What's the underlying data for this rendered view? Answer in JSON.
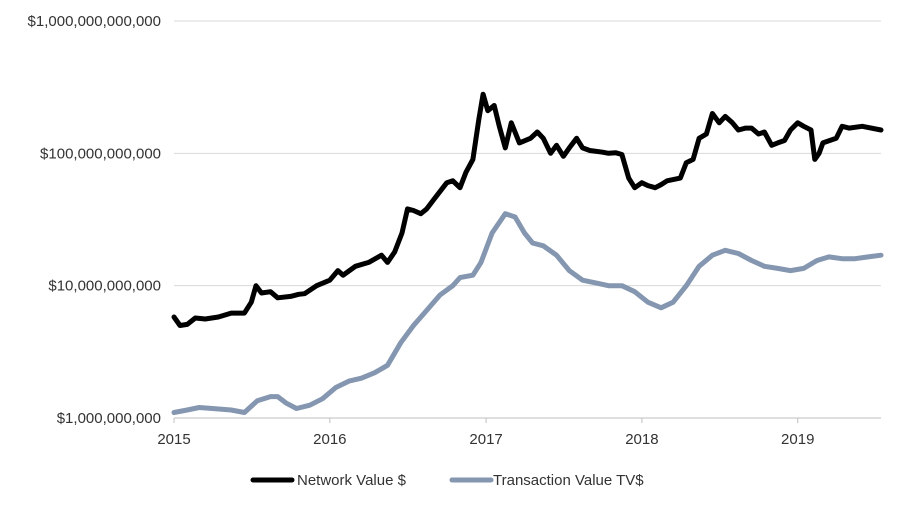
{
  "chart_data": {
    "type": "line",
    "title": "",
    "xlabel": "",
    "ylabel": "",
    "y_scale": "log",
    "ylim": [
      1000000000,
      1000000000000
    ],
    "xlim": [
      "2015-01-01",
      "2019-07-15"
    ],
    "grid": {
      "horizontal": true,
      "vertical": false
    },
    "legend": "bottom-center",
    "x_ticks": [
      "2015",
      "2016",
      "2017",
      "2018",
      "2019"
    ],
    "y_ticks": [
      {
        "value": 1000000000,
        "label": "$1,000,000,000"
      },
      {
        "value": 10000000000,
        "label": "$10,000,000,000"
      },
      {
        "value": 100000000000,
        "label": "$100,000,000,000"
      },
      {
        "value": 1000000000000,
        "label": "$1,000,000,000,000"
      }
    ],
    "series": [
      {
        "name": "Network Value $",
        "color": "#000000",
        "points": [
          [
            "2015-01-01",
            5800000000
          ],
          [
            "2015-01-15",
            5000000000
          ],
          [
            "2015-02-01",
            5100000000
          ],
          [
            "2015-02-20",
            5700000000
          ],
          [
            "2015-03-15",
            5600000000
          ],
          [
            "2015-04-15",
            5800000000
          ],
          [
            "2015-05-15",
            6200000000
          ],
          [
            "2015-06-15",
            6200000000
          ],
          [
            "2015-07-01",
            7500000000
          ],
          [
            "2015-07-12",
            10000000000
          ],
          [
            "2015-07-25",
            8800000000
          ],
          [
            "2015-08-15",
            9000000000
          ],
          [
            "2015-09-01",
            8100000000
          ],
          [
            "2015-10-01",
            8300000000
          ],
          [
            "2015-10-20",
            8600000000
          ],
          [
            "2015-11-03",
            8700000000
          ],
          [
            "2015-12-01",
            10000000000
          ],
          [
            "2016-01-01",
            11000000000
          ],
          [
            "2016-01-20",
            13000000000
          ],
          [
            "2016-02-01",
            12000000000
          ],
          [
            "2016-03-01",
            14000000000
          ],
          [
            "2016-04-01",
            15000000000
          ],
          [
            "2016-05-01",
            17000000000
          ],
          [
            "2016-05-15",
            15000000000
          ],
          [
            "2016-06-01",
            18000000000
          ],
          [
            "2016-06-18",
            25000000000
          ],
          [
            "2016-07-01",
            38000000000
          ],
          [
            "2016-07-15",
            37000000000
          ],
          [
            "2016-08-01",
            35000000000
          ],
          [
            "2016-08-15",
            38000000000
          ],
          [
            "2016-09-01",
            45000000000
          ],
          [
            "2016-10-01",
            60000000000
          ],
          [
            "2016-10-15",
            62000000000
          ],
          [
            "2016-11-01",
            55000000000
          ],
          [
            "2016-11-15",
            72000000000
          ],
          [
            "2016-12-01",
            90000000000
          ],
          [
            "2016-12-15",
            180000000000
          ],
          [
            "2016-12-25",
            280000000000
          ],
          [
            "2017-01-05",
            210000000000
          ],
          [
            "2017-01-20",
            230000000000
          ],
          [
            "2017-02-01",
            160000000000
          ],
          [
            "2017-02-15",
            110000000000
          ],
          [
            "2017-03-01",
            170000000000
          ],
          [
            "2017-03-20",
            120000000000
          ],
          [
            "2017-04-15",
            130000000000
          ],
          [
            "2017-05-01",
            145000000000
          ],
          [
            "2017-05-15",
            130000000000
          ],
          [
            "2017-06-01",
            100000000000
          ],
          [
            "2017-06-15",
            115000000000
          ],
          [
            "2017-07-01",
            95000000000
          ],
          [
            "2017-07-15",
            110000000000
          ],
          [
            "2017-08-01",
            130000000000
          ],
          [
            "2017-08-15",
            110000000000
          ],
          [
            "2017-09-01",
            105000000000
          ],
          [
            "2017-10-01",
            102000000000
          ],
          [
            "2017-10-15",
            100000000000
          ],
          [
            "2017-11-01",
            101000000000
          ],
          [
            "2017-11-15",
            98000000000
          ],
          [
            "2017-12-01",
            65000000000
          ],
          [
            "2017-12-15",
            55000000000
          ],
          [
            "2018-01-01",
            60000000000
          ],
          [
            "2018-01-15",
            57000000000
          ],
          [
            "2018-02-01",
            55000000000
          ],
          [
            "2018-02-15",
            58000000000
          ],
          [
            "2018-03-01",
            62000000000
          ],
          [
            "2018-04-01",
            65000000000
          ],
          [
            "2018-04-15",
            85000000000
          ],
          [
            "2018-05-01",
            90000000000
          ],
          [
            "2018-05-15",
            130000000000
          ],
          [
            "2018-06-01",
            140000000000
          ],
          [
            "2018-06-15",
            200000000000
          ],
          [
            "2018-07-01",
            170000000000
          ],
          [
            "2018-07-15",
            190000000000
          ],
          [
            "2018-08-01",
            170000000000
          ],
          [
            "2018-08-15",
            150000000000
          ],
          [
            "2018-09-01",
            155000000000
          ],
          [
            "2018-09-15",
            155000000000
          ],
          [
            "2018-10-01",
            140000000000
          ],
          [
            "2018-10-15",
            145000000000
          ],
          [
            "2018-11-01",
            115000000000
          ],
          [
            "2018-11-15",
            120000000000
          ],
          [
            "2018-12-01",
            125000000000
          ],
          [
            "2018-12-15",
            150000000000
          ],
          [
            "2019-01-01",
            170000000000
          ],
          [
            "2019-01-15",
            160000000000
          ],
          [
            "2019-02-01",
            150000000000
          ],
          [
            "2019-02-10",
            90000000000
          ],
          [
            "2019-02-20",
            100000000000
          ],
          [
            "2019-03-01",
            120000000000
          ],
          [
            "2019-04-01",
            130000000000
          ],
          [
            "2019-04-15",
            160000000000
          ],
          [
            "2019-05-01",
            155000000000
          ],
          [
            "2019-06-01",
            160000000000
          ],
          [
            "2019-07-15",
            150000000000
          ]
        ]
      },
      {
        "name": "Transaction Value TV$",
        "color": "#8496b0",
        "points": [
          [
            "2015-01-01",
            1100000000
          ],
          [
            "2015-02-01",
            1150000000
          ],
          [
            "2015-03-01",
            1200000000
          ],
          [
            "2015-04-01",
            1180000000
          ],
          [
            "2015-05-15",
            1150000000
          ],
          [
            "2015-06-15",
            1100000000
          ],
          [
            "2015-07-15",
            1350000000
          ],
          [
            "2015-08-15",
            1450000000
          ],
          [
            "2015-09-01",
            1450000000
          ],
          [
            "2015-09-20",
            1300000000
          ],
          [
            "2015-10-15",
            1180000000
          ],
          [
            "2015-11-15",
            1250000000
          ],
          [
            "2015-12-15",
            1400000000
          ],
          [
            "2016-01-15",
            1700000000
          ],
          [
            "2016-02-15",
            1900000000
          ],
          [
            "2016-03-15",
            2000000000
          ],
          [
            "2016-04-15",
            2200000000
          ],
          [
            "2016-05-15",
            2500000000
          ],
          [
            "2016-06-15",
            3700000000
          ],
          [
            "2016-07-15",
            5000000000
          ],
          [
            "2016-08-15",
            6500000000
          ],
          [
            "2016-09-15",
            8500000000
          ],
          [
            "2016-10-15",
            10000000000
          ],
          [
            "2016-11-01",
            11500000000
          ],
          [
            "2016-12-01",
            12000000000
          ],
          [
            "2016-12-20",
            15000000000
          ],
          [
            "2017-01-15",
            25000000000
          ],
          [
            "2017-02-15",
            35000000000
          ],
          [
            "2017-03-10",
            33000000000
          ],
          [
            "2017-04-01",
            25000000000
          ],
          [
            "2017-04-20",
            21000000000
          ],
          [
            "2017-05-15",
            20000000000
          ],
          [
            "2017-06-15",
            17000000000
          ],
          [
            "2017-07-15",
            13000000000
          ],
          [
            "2017-08-15",
            11000000000
          ],
          [
            "2017-09-15",
            10500000000
          ],
          [
            "2017-10-15",
            10000000000
          ],
          [
            "2017-11-15",
            10000000000
          ],
          [
            "2017-12-15",
            9000000000
          ],
          [
            "2018-01-15",
            7500000000
          ],
          [
            "2018-02-15",
            6800000000
          ],
          [
            "2018-03-15",
            7500000000
          ],
          [
            "2018-04-15",
            10000000000
          ],
          [
            "2018-05-15",
            14000000000
          ],
          [
            "2018-06-15",
            17000000000
          ],
          [
            "2018-07-15",
            18500000000
          ],
          [
            "2018-08-15",
            17500000000
          ],
          [
            "2018-09-15",
            15500000000
          ],
          [
            "2018-10-15",
            14000000000
          ],
          [
            "2018-11-15",
            13500000000
          ],
          [
            "2018-12-15",
            13000000000
          ],
          [
            "2019-01-15",
            13500000000
          ],
          [
            "2019-02-15",
            15500000000
          ],
          [
            "2019-03-15",
            16500000000
          ],
          [
            "2019-04-15",
            16000000000
          ],
          [
            "2019-05-15",
            16000000000
          ],
          [
            "2019-06-15",
            16500000000
          ],
          [
            "2019-07-15",
            17000000000
          ]
        ]
      }
    ]
  }
}
